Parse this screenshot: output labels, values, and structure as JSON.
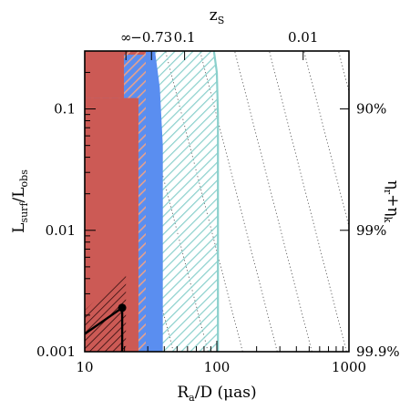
{
  "chart_data": {
    "type": "area",
    "title": "",
    "x_scale": "log",
    "y_scale": "log",
    "xlim": [
      10,
      1000
    ],
    "ylim": [
      0.001,
      0.3
    ],
    "x_ticks": [
      {
        "value": 10,
        "label": "10"
      },
      {
        "value": 100,
        "label": "100"
      },
      {
        "value": 1000,
        "label": "1000"
      }
    ],
    "y_ticks": [
      {
        "value": 0.001,
        "label": "0.001"
      },
      {
        "value": 0.01,
        "label": "0.01"
      },
      {
        "value": 0.1,
        "label": "0.1"
      }
    ],
    "top_ticks": [
      {
        "value": 20.5,
        "label": "∞"
      },
      {
        "value": 32,
        "label": "−0.73"
      },
      {
        "value": 57,
        "label": "0.1"
      },
      {
        "value": 450,
        "label": "0.01"
      }
    ],
    "right_ticks": [
      {
        "value": 0.1,
        "label": "90%"
      },
      {
        "value": 0.01,
        "label": "99%"
      },
      {
        "value": 0.001,
        "label": "99.9%"
      }
    ],
    "xlabel": {
      "main": "R",
      "sub": "a",
      "rest": "/D (μas)"
    },
    "ylabel": {
      "main": "L",
      "sub1": "surf",
      "mid": "/L",
      "sub2": "obs"
    },
    "top_label": {
      "main": "z",
      "sub": "S"
    },
    "right_label": "η",
    "right_label_parts": {
      "a": "η",
      "sub_a": "r",
      "b": "+η",
      "sub_b": "k"
    },
    "colors": {
      "red": "#cc5a55",
      "red_dark": "#b03a35",
      "blue": "#5a8ef0",
      "teal": "#8ad0cc",
      "pink_hatch": "#e7a08c",
      "frame": "#000000"
    },
    "regions": [
      {
        "name": "teal-hatched",
        "boundary": [
          [
            102,
            0.001
          ],
          [
            102,
            0.09
          ],
          [
            100,
            0.2
          ],
          [
            95,
            0.3
          ]
        ]
      },
      {
        "name": "blue",
        "boundary": [
          [
            39,
            0.001
          ],
          [
            39,
            0.05
          ],
          [
            37,
            0.15
          ],
          [
            34,
            0.3
          ]
        ]
      },
      {
        "name": "pink-hatched",
        "boundary": [
          [
            29,
            0.001
          ],
          [
            29,
            0.28
          ]
        ]
      },
      {
        "name": "red-solid-lower",
        "x": [
          10,
          25.5
        ],
        "y": [
          0.001,
          0.123
        ]
      },
      {
        "name": "red-solid-upper",
        "x": [
          10,
          19.8
        ],
        "y": [
          0.123,
          0.3
        ]
      },
      {
        "name": "dark-hatched",
        "x": [
          10,
          20.5
        ],
        "y": [
          0.001,
          0.0045
        ]
      }
    ],
    "black_curve": [
      [
        10,
        0.0014
      ],
      [
        19.2,
        0.0023
      ],
      [
        19.2,
        0.001
      ]
    ],
    "black_point": {
      "x": 19.2,
      "y": 0.0023
    },
    "dotted_lines": {
      "slope": -2,
      "count": 12
    }
  }
}
